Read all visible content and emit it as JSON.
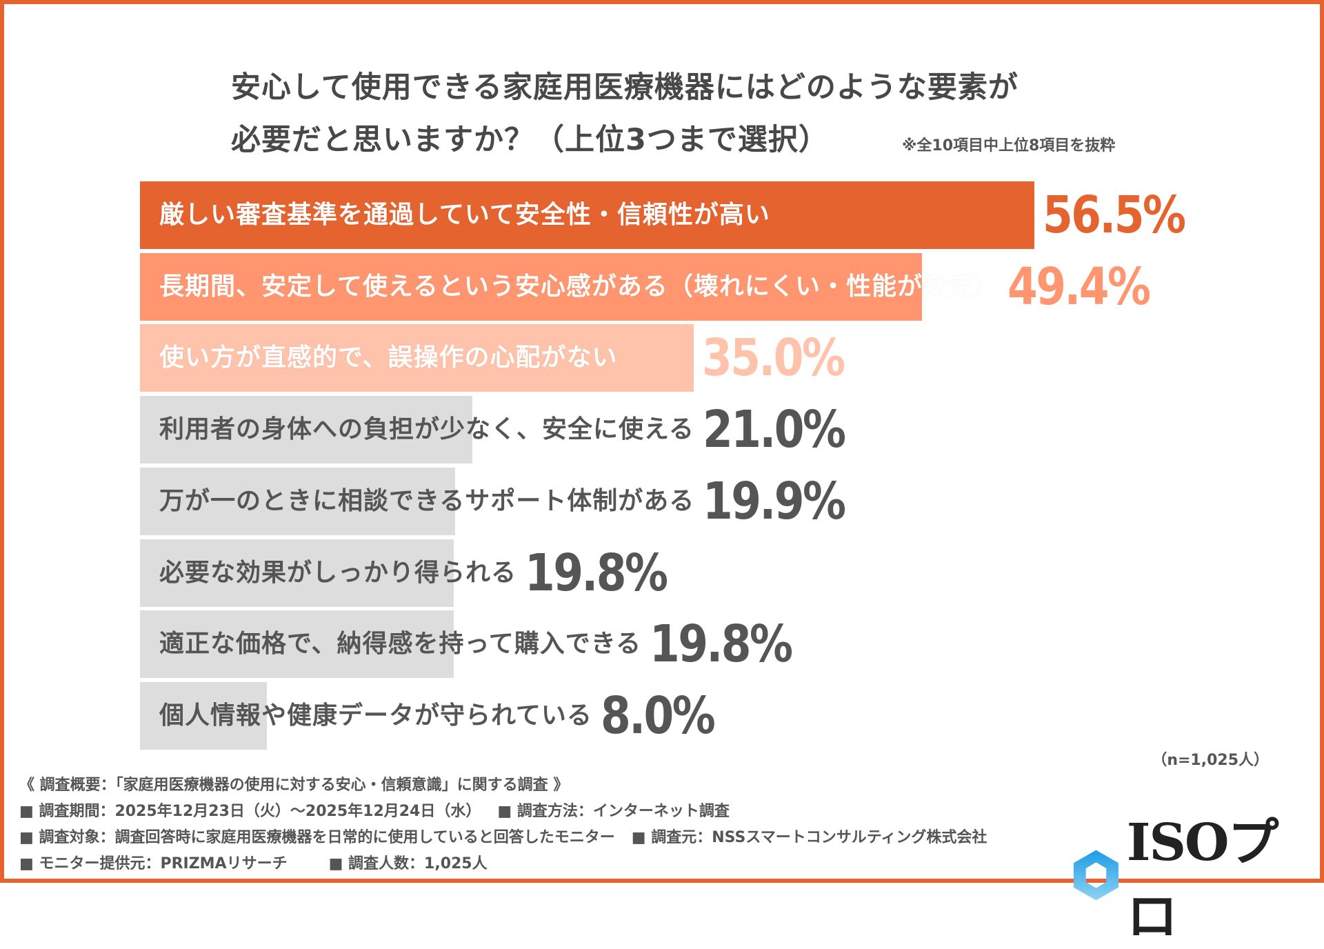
{
  "title": {
    "line1": "安心して使用できる家庭用医療機器にはどのような要素が",
    "line2": "必要だと思いますか？（上位3つまで選択）",
    "note": "※全10項目中上位8項目を抜粋"
  },
  "chart_data": {
    "type": "bar",
    "orientation": "horizontal",
    "unit": "%",
    "xlim": [
      0,
      100
    ],
    "grid": false,
    "categories": [
      "厳しい審査基準を通過していて安全性・信頼性が高い",
      "長期間、安定して使えるという安心感がある（壊れにくい・性能が安定）",
      "使い方が直感的で、誤操作の心配がない",
      "利用者の身体への負担が少なく、安全に使える",
      "万が一のときに相談できるサポート体制がある",
      "必要な効果がしっかり得られる",
      "適正な価格で、納得感を持って購入できる",
      "個人情報や健康データが守られている"
    ],
    "values": [
      56.5,
      49.4,
      35.0,
      21.0,
      19.9,
      19.8,
      19.8,
      8.0
    ],
    "value_labels": [
      "56.5%",
      "49.4%",
      "35.0%",
      "21.0%",
      "19.9%",
      "19.8%",
      "19.8%",
      "8.0%"
    ],
    "bar_colors": [
      "#E5632F",
      "#FF9670",
      "#FFC2AA",
      "#DDDDDD",
      "#DDDDDD",
      "#DDDDDD",
      "#DDDDDD",
      "#DDDDDD"
    ],
    "value_colors": [
      "#E5632F",
      "#FF9670",
      "#FFC2AA",
      "#555555",
      "#555555",
      "#555555",
      "#555555",
      "#555555"
    ]
  },
  "sample_size": "（n=1,025人）",
  "footer": {
    "overview": "《 調査概要：「家庭用医療機器の使用に対する安心・信頼意識」に関する調査 》",
    "period": "■ 調査期間：2025年12月23日（火）〜2025年12月24日（水）",
    "method": "■ 調査方法：インターネット調査",
    "target": "■ 調査対象：調査回答時に家庭用医療機器を日常的に使用していると回答したモニター",
    "source": "■ 調査元：NSSスマートコンサルティング株式会社",
    "provider": "■ モニター提供元：PRIZMAリサーチ",
    "count": "■ 調査人数：1,025人"
  },
  "logo": {
    "text": "ISOプロ",
    "icon": "hexagon-icon",
    "color": "#29A3E6"
  },
  "colors": {
    "accent": "#E5632F",
    "border": "#E5632F"
  }
}
